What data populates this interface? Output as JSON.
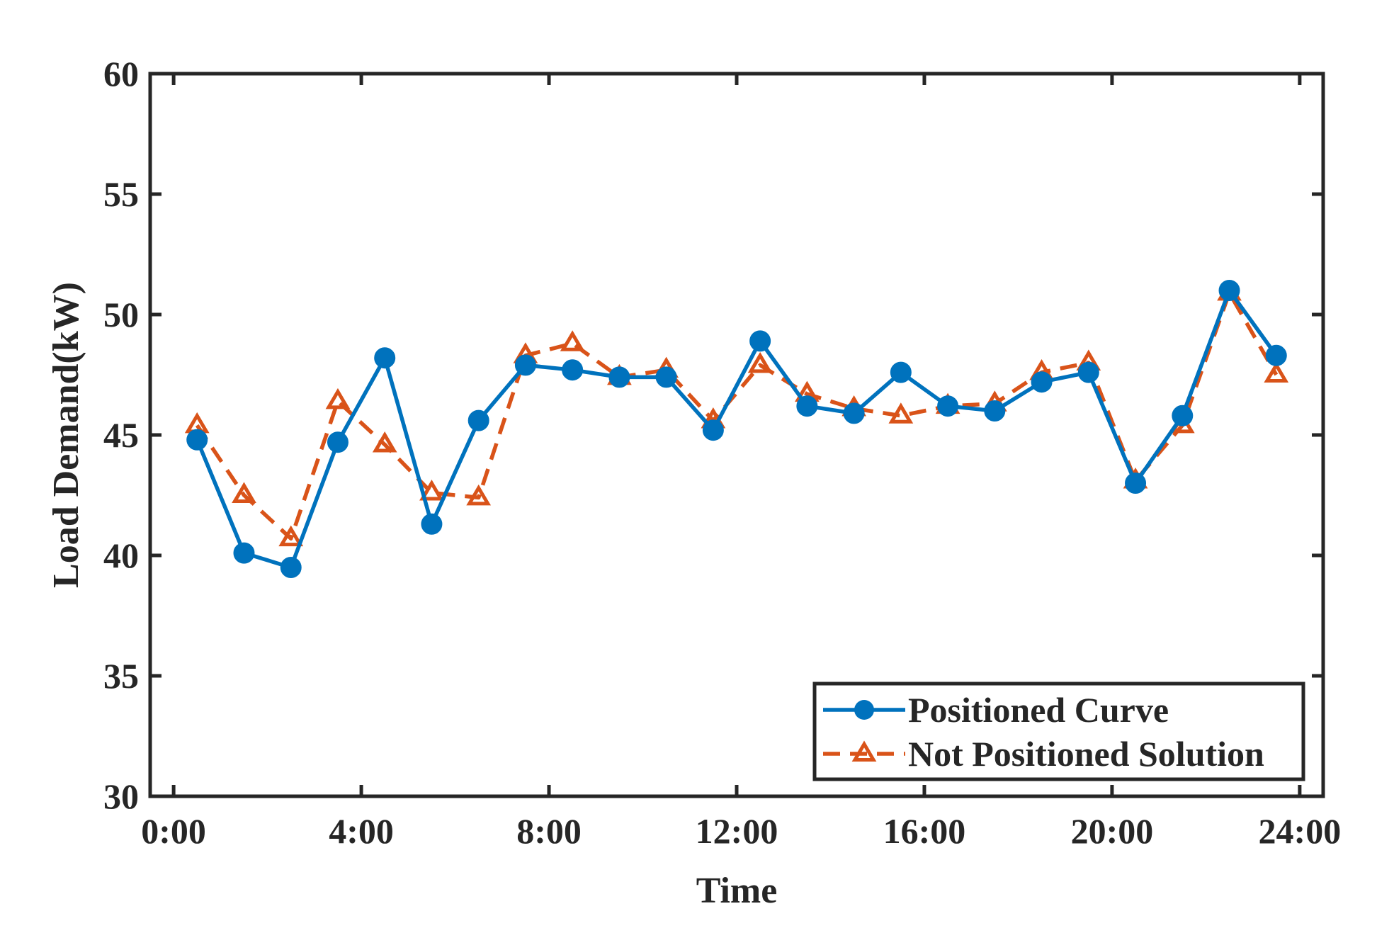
{
  "chart_data": {
    "type": "line",
    "title": "",
    "xlabel": "Time",
    "ylabel": "Load Demand(kW)",
    "xlim": [
      -0.5,
      24.5
    ],
    "ylim": [
      30,
      60
    ],
    "xticks": [
      0,
      4,
      8,
      12,
      16,
      20,
      24
    ],
    "xtick_labels": [
      "0:00",
      "4:00",
      "8:00",
      "12:00",
      "16:00",
      "20:00",
      "24:00"
    ],
    "yticks": [
      30,
      35,
      40,
      45,
      50,
      55,
      60
    ],
    "ytick_labels": [
      "30",
      "35",
      "40",
      "45",
      "50",
      "55",
      "60"
    ],
    "grid": false,
    "legend_position": "bottom-right",
    "x": [
      0.5,
      1.5,
      2.5,
      3.5,
      4.5,
      5.5,
      6.5,
      7.5,
      8.5,
      9.5,
      10.5,
      11.5,
      12.5,
      13.5,
      14.5,
      15.5,
      16.5,
      17.5,
      18.5,
      19.5,
      20.5,
      21.5,
      22.5,
      23.5
    ],
    "series": [
      {
        "name": "Positioned Curve",
        "color": "#0072BD",
        "style": "solid",
        "marker": "circle",
        "values": [
          44.8,
          40.1,
          39.5,
          44.7,
          48.2,
          41.3,
          45.6,
          47.9,
          47.7,
          47.4,
          47.4,
          45.2,
          48.9,
          46.2,
          45.9,
          47.6,
          46.2,
          46.0,
          47.2,
          47.6,
          43.0,
          45.8,
          51.0,
          48.3
        ]
      },
      {
        "name": "Not Positioned Solution",
        "color": "#D95319",
        "style": "dashed",
        "marker": "triangle",
        "values": [
          45.4,
          42.5,
          40.7,
          46.4,
          44.6,
          42.6,
          42.4,
          48.3,
          48.8,
          47.4,
          47.7,
          45.6,
          47.9,
          46.7,
          46.1,
          45.8,
          46.2,
          46.3,
          47.6,
          48.0,
          43.1,
          45.4,
          50.9,
          47.5
        ]
      }
    ]
  }
}
